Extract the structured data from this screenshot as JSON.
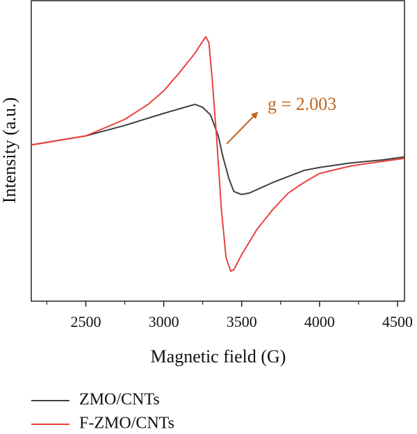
{
  "chart_data": {
    "type": "line",
    "xlabel": "Magnetic field (G)",
    "ylabel": "Intensity (a.u.)",
    "xlim": [
      2150,
      4545
    ],
    "xticks": [
      2500,
      3000,
      3500,
      4000,
      4500
    ],
    "xticks_minor": [
      2250,
      2750,
      3250,
      3750,
      4250
    ],
    "ylim": [
      -1,
      1
    ],
    "annotation": "g = 2.003",
    "annotation_color": "#c0651e",
    "series": [
      {
        "name": "ZMO/CNTs",
        "color": "#3f3f3f",
        "x": [
          2150,
          2500,
          2750,
          3000,
          3100,
          3200,
          3250,
          3300,
          3350,
          3380,
          3420,
          3450,
          3500,
          3550,
          3700,
          3900,
          4000,
          4200,
          4400,
          4545
        ],
        "values": [
          0.04,
          0.1,
          0.17,
          0.25,
          0.28,
          0.31,
          0.29,
          0.24,
          0.1,
          -0.04,
          -0.19,
          -0.27,
          -0.29,
          -0.28,
          -0.21,
          -0.13,
          -0.11,
          -0.08,
          -0.06,
          -0.04
        ]
      },
      {
        "name": "F-ZMO/CNTs",
        "color": "#e8413f",
        "x": [
          2150,
          2500,
          2750,
          2900,
          3000,
          3100,
          3200,
          3250,
          3270,
          3290,
          3310,
          3340,
          3370,
          3400,
          3430,
          3450,
          3500,
          3600,
          3700,
          3800,
          3900,
          4000,
          4200,
          4400,
          4545
        ],
        "values": [
          0.04,
          0.1,
          0.21,
          0.31,
          0.4,
          0.52,
          0.65,
          0.73,
          0.76,
          0.72,
          0.49,
          0.08,
          -0.39,
          -0.71,
          -0.8,
          -0.79,
          -0.69,
          -0.52,
          -0.39,
          -0.28,
          -0.21,
          -0.15,
          -0.1,
          -0.07,
          -0.05
        ]
      }
    ]
  }
}
